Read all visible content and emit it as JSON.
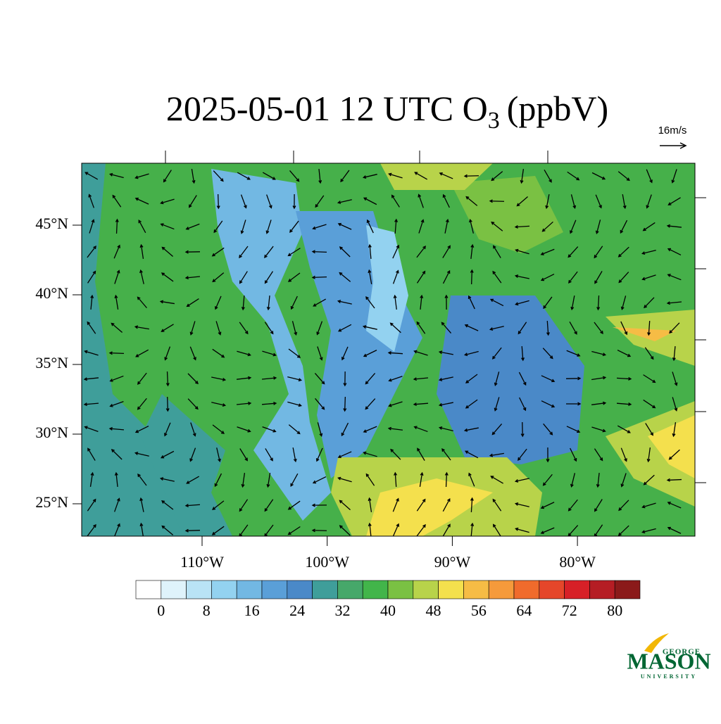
{
  "title": {
    "main": "2025-05-01 12 UTC O",
    "subscript": "3",
    "unit": "(ppbV)"
  },
  "vector_reference": "16m/s",
  "lat_ticks": [
    {
      "value": 45,
      "label": "45°N"
    },
    {
      "value": 40,
      "label": "40°N"
    },
    {
      "value": 35,
      "label": "35°N"
    },
    {
      "value": 30,
      "label": "30°N"
    },
    {
      "value": 25,
      "label": "25°N"
    }
  ],
  "lon_ticks": [
    {
      "value": -110,
      "label": "110°W"
    },
    {
      "value": -100,
      "label": "100°W"
    },
    {
      "value": -90,
      "label": "90°W"
    },
    {
      "value": -80,
      "label": "80°W"
    }
  ],
  "colorbar": {
    "ticks": [
      0,
      8,
      16,
      24,
      32,
      40,
      48,
      56,
      64,
      72,
      80
    ],
    "colors": [
      "#ffffff",
      "#dff3fb",
      "#b9e3f5",
      "#93d2f0",
      "#72b8e3",
      "#5a9fd8",
      "#4a89c8",
      "#3f9e9a",
      "#46a86a",
      "#42b54a",
      "#7ac143",
      "#b8d34a",
      "#f4e04d",
      "#f6bc45",
      "#f59a3b",
      "#f06b2c",
      "#e5462a",
      "#d72027",
      "#b51d24",
      "#8b1a1a"
    ]
  },
  "logo": {
    "top": "GEORGE",
    "main": "MASON",
    "bottom": "UNIVERSITY"
  }
}
